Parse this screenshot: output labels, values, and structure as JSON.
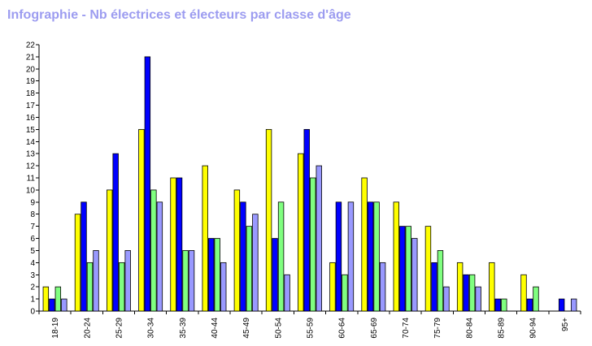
{
  "title": "Infographie - Nb électrices et électeurs par classe d'âge",
  "chart_data": {
    "type": "bar",
    "title": "Infographie - Nb électrices et électeurs par classe d'âge",
    "xlabel": "",
    "ylabel": "",
    "ylim": [
      0,
      22
    ],
    "yticks": [
      "0",
      "1",
      "2",
      "3",
      "4",
      "5",
      "6",
      "7",
      "8",
      "9",
      "10",
      "11",
      "12",
      "13",
      "14",
      "15",
      "16",
      "17",
      "18",
      "19",
      "20",
      "21",
      "22"
    ],
    "grid": false,
    "legend": "none",
    "categories": [
      "18-19",
      "20-24",
      "25-29",
      "30-34",
      "35-39",
      "40-44",
      "45-49",
      "50-54",
      "55-59",
      "60-64",
      "65-69",
      "70-74",
      "75-79",
      "80-84",
      "85-89",
      "90-94",
      "95+"
    ],
    "series": [
      {
        "color": "#ffff00",
        "values": [
          2,
          8,
          10,
          15,
          11,
          12,
          10,
          15,
          13,
          4,
          11,
          9,
          7,
          4,
          4,
          3,
          0
        ]
      },
      {
        "color": "#0000ff",
        "values": [
          1,
          9,
          13,
          21,
          11,
          6,
          9,
          6,
          15,
          9,
          9,
          7,
          4,
          3,
          1,
          1,
          1
        ]
      },
      {
        "color": "#80ff80",
        "values": [
          2,
          4,
          4,
          10,
          5,
          6,
          7,
          9,
          11,
          3,
          9,
          7,
          5,
          3,
          1,
          2,
          0
        ]
      },
      {
        "color": "#9999ff",
        "values": [
          1,
          5,
          5,
          9,
          5,
          4,
          8,
          3,
          12,
          9,
          4,
          6,
          2,
          2,
          0,
          0,
          1
        ]
      }
    ]
  }
}
